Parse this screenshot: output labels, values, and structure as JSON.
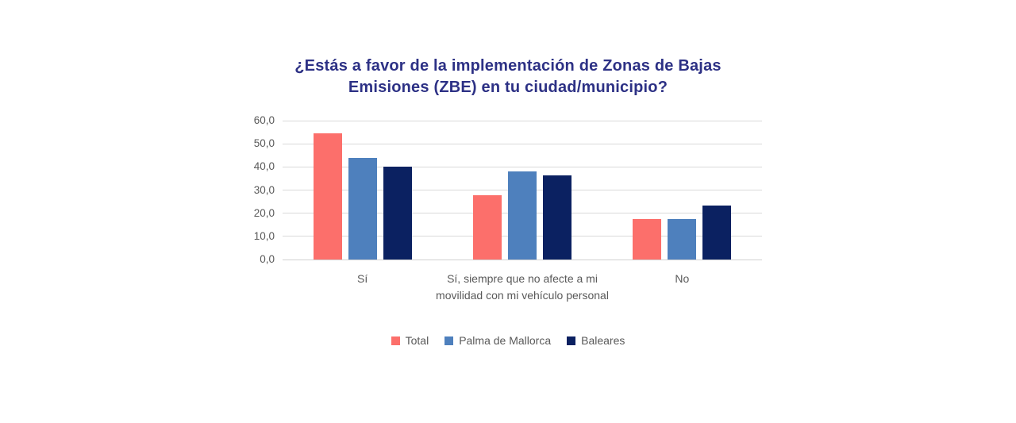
{
  "chart_data": {
    "type": "bar",
    "title": "¿Estás a favor de la implementación de Zonas de Bajas Emisiones (ZBE) en tu ciudad/municipio?",
    "categories": [
      "Sí",
      "Sí, siempre que no afecte a mi movilidad con mi vehículo personal",
      "No"
    ],
    "series": [
      {
        "name": "Total",
        "color": "#FC6F6B",
        "values": [
          54.5,
          27.8,
          17.4
        ]
      },
      {
        "name": "Palma de Mallorca",
        "color": "#4E80BD",
        "values": [
          44.0,
          38.2,
          17.4
        ]
      },
      {
        "name": "Baleares",
        "color": "#0B2161",
        "values": [
          40.0,
          36.4,
          23.2
        ]
      }
    ],
    "ylim": [
      0,
      60
    ],
    "ytick_step": 10,
    "ytick_labels": [
      "0,0",
      "10,0",
      "20,0",
      "30,0",
      "40,0",
      "50,0",
      "60,0"
    ],
    "xlabel": "",
    "ylabel": "",
    "grid": true,
    "legend_position": "bottom-center"
  },
  "colors": {
    "title": "#2D3185",
    "axis_text": "#595959",
    "gridline": "#D9D9D9",
    "axis_line": "#D0D0D0",
    "background": "#FFFFFF"
  }
}
